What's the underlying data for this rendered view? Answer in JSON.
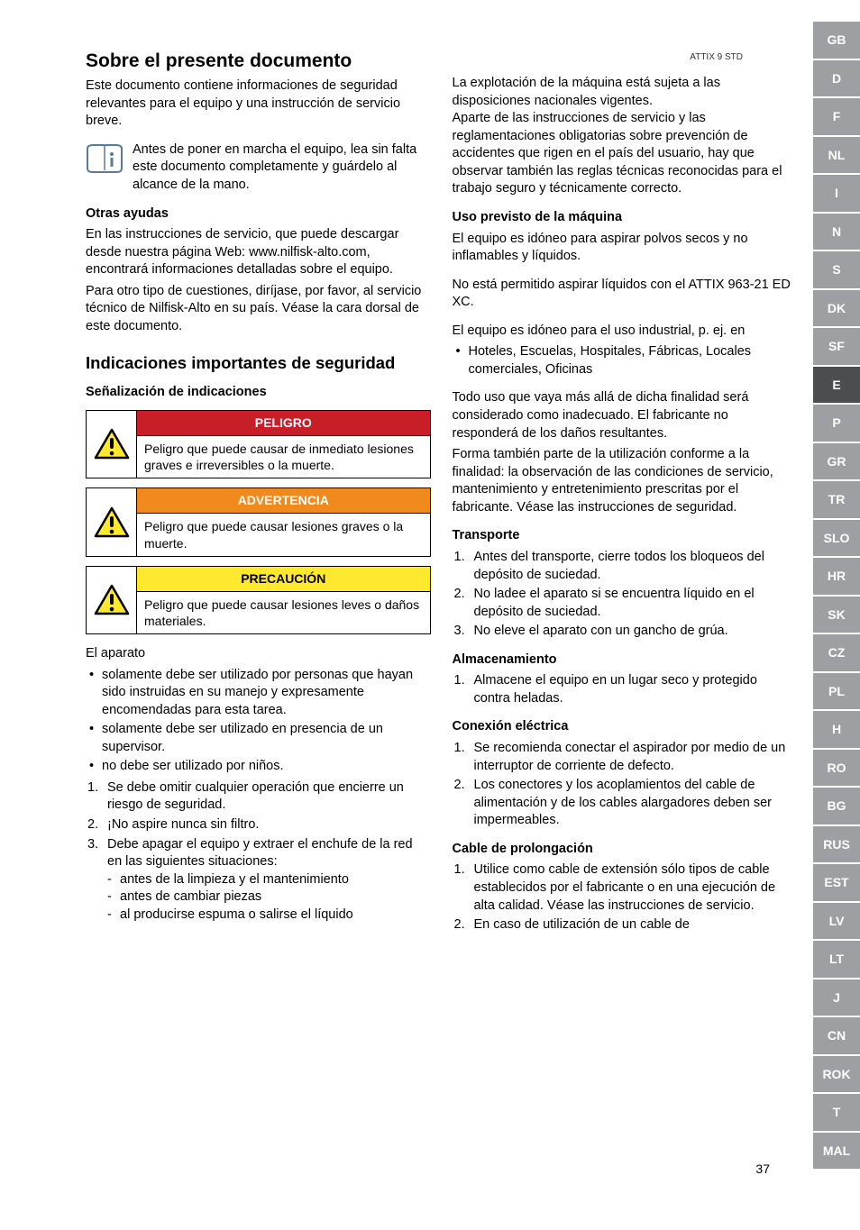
{
  "meta": {
    "product_code": "ATTIX 9 STD",
    "page_number": "37"
  },
  "left": {
    "h1": "Sobre el presente documento",
    "intro": "Este documento contiene informaciones de seguridad relevantes para el equipo y una instrucción de servicio breve.",
    "info_note": "Antes de poner en marcha el equipo, lea sin falta este documento completamente y guárdelo al alcance de la mano.",
    "otras_head": "Otras ayudas",
    "otras_p1": "En las instrucciones de servicio, que puede descargar desde nuestra página Web: www.nilfisk-alto.com, encontrará informaciones detalladas sobre el equipo.",
    "otras_p2": "Para otro tipo de cuestiones, diríjase, por favor, al servicio técnico de Nilfisk-Alto en su país. Véase la cara dorsal de este documento.",
    "h2": "Indicaciones importantes de seguridad",
    "senal_head": "Señalización de indicaciones",
    "danger": {
      "label": "PELIGRO",
      "text": "Peligro que puede causar de inmediato lesiones graves e irreversibles o la muerte.",
      "bg": "#c81e28"
    },
    "warn": {
      "label": "ADVERTENCIA",
      "text": "Peligro que puede causar lesiones graves o la muerte.",
      "bg": "#f08a1d"
    },
    "caution": {
      "label": "PRECAUCIÓN",
      "text": "Peligro que puede causar lesiones leves o daños materiales.",
      "bg": "#ffe92e",
      "fg": "#000000"
    },
    "aparato_head": "El aparato",
    "aparato_bullets": [
      "solamente debe ser utilizado por personas que hayan sido instruidas en su manejo y expresamente encomendadas para esta tarea.",
      "solamente debe ser utilizado en presencia de un supervisor.",
      "no debe ser utilizado por niños."
    ],
    "aparato_numbered": [
      "Se debe omitir cualquier operación que encierre un riesgo de seguridad.",
      "¡No aspire nunca sin filtro.",
      "Debe apagar el equipo y extraer el enchufe de la red en las siguientes situaciones:"
    ],
    "aparato_dashes": [
      "antes de la limpieza y el mantenimiento",
      "antes de cambiar piezas",
      "al producirse espuma o salirse el líquido"
    ]
  },
  "right": {
    "intro": "La explotación de la máquina está sujeta a las disposiciones nacionales vigentes.\nAparte de las instrucciones de servicio y las reglamentaciones obligatorias sobre prevención de accidentes que rigen en el país del usuario, hay que observar también las reglas técnicas reconocidas para el trabajo seguro y técnicamente correcto.",
    "uso_head": "Uso previsto de la máquina",
    "uso_p1": "El equipo es idóneo para aspirar polvos secos y no inflamables y líquidos.",
    "uso_p2": "No está permitido aspirar líquidos con el ATTIX 963-21 ED XC.",
    "uso_p3": "El equipo es idóneo para el uso industrial, p. ej. en",
    "uso_bullet": "Hoteles, Escuelas, Hospitales, Fábricas, Locales comerciales, Oficinas",
    "uso_p4": "Todo uso que vaya más allá de dicha finalidad será considerado como inadecuado. El fabricante no responderá de los daños resultantes.",
    "uso_p5": "Forma también parte de la utilización conforme a la finalidad: la observación de las condiciones de servicio, mantenimiento y entretenimiento prescritas por el fabricante. Véase las instrucciones de seguridad.",
    "trans_head": "Transporte",
    "trans_items": [
      "Antes del transporte, cierre todos los bloqueos del depósito de suciedad.",
      "No ladee el aparato si se encuentra líquido en el depósito de suciedad.",
      "No eleve el aparato con un gancho de grúa."
    ],
    "alm_head": "Almacenamiento",
    "alm_items": [
      "Almacene el equipo en un lugar seco y protegido contra heladas."
    ],
    "con_head": "Conexión eléctrica",
    "con_items": [
      "Se recomienda conectar el aspirador por medio de un interruptor de corriente de defecto.",
      "Los conectores y los acoplamientos del cable de alimentación y de los cables alargadores deben ser impermeables."
    ],
    "cable_head": "Cable de prolongación",
    "cable_items": [
      "Utilice como cable de extensión sólo tipos de cable establecidos por el fabricante o en una ejecución de alta calidad. Véase las instrucciones de servicio.",
      "En caso de utilización de un cable de"
    ]
  },
  "langs": [
    "GB",
    "D",
    "F",
    "NL",
    "I",
    "N",
    "S",
    "DK",
    "SF",
    "E",
    "P",
    "GR",
    "TR",
    "SLO",
    "HR",
    "SK",
    "CZ",
    "PL",
    "H",
    "RO",
    "BG",
    "RUS",
    "EST",
    "LV",
    "LT",
    "J",
    "CN",
    "ROK",
    "T",
    "MAL"
  ],
  "active_lang": "E",
  "colors": {
    "tab_bg": "#9d9fa2",
    "tab_active_bg": "#4b4d50",
    "warn_triangle_border": "#000000",
    "warn_triangle_fill": "#ffe92e"
  }
}
